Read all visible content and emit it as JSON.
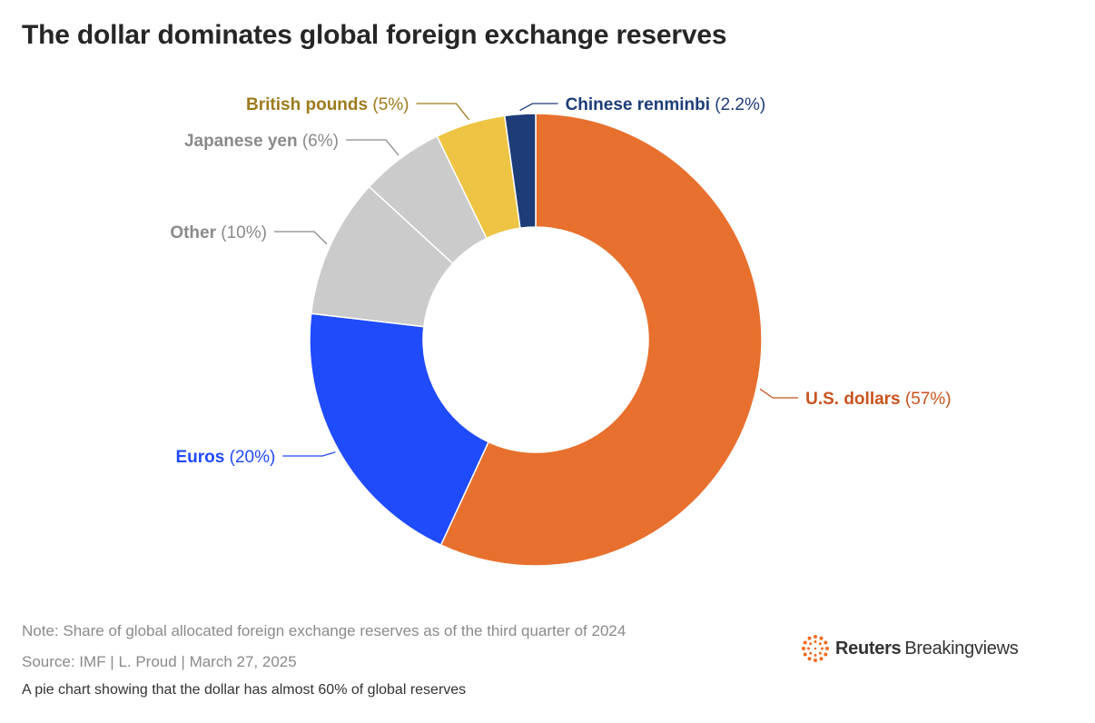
{
  "title": "The dollar dominates global foreign exchange reserves",
  "chart_data": {
    "type": "pie",
    "donut": true,
    "title": "The dollar dominates global foreign exchange reserves",
    "slices": [
      {
        "name": "U.S. dollars",
        "value": 57,
        "value_label": "(57%)",
        "color": "#E8702E",
        "label_color": "#C9531E"
      },
      {
        "name": "Euros",
        "value": 20,
        "value_label": "(20%)",
        "color": "#1F4BFB",
        "label_color": "#1F4BFB"
      },
      {
        "name": "Other",
        "value": 10,
        "value_label": "(10%)",
        "color": "#CBCBCB",
        "label_color": "#8A8A8A"
      },
      {
        "name": "Japanese yen",
        "value": 6,
        "value_label": "(6%)",
        "color": "#CBCBCB",
        "label_color": "#8A8A8A"
      },
      {
        "name": "British pounds",
        "value": 5,
        "value_label": "(5%)",
        "color": "#EDC443",
        "label_color": "#9E7A1C"
      },
      {
        "name": "Chinese renminbi",
        "value": 2.2,
        "value_label": "(2.2%)",
        "color": "#1D3C78",
        "label_color": "#1D3C78"
      }
    ]
  },
  "footer": {
    "note": "Note: Share of global allocated foreign exchange reserves as of the third quarter of 2024",
    "source": "Source: IMF | L. Proud | March 27, 2025",
    "description": "A pie chart showing that the dollar has almost 60% of global reserves"
  },
  "brand": {
    "name": "Reuters",
    "sub": "Breakingviews",
    "color": "#F26B1D"
  }
}
